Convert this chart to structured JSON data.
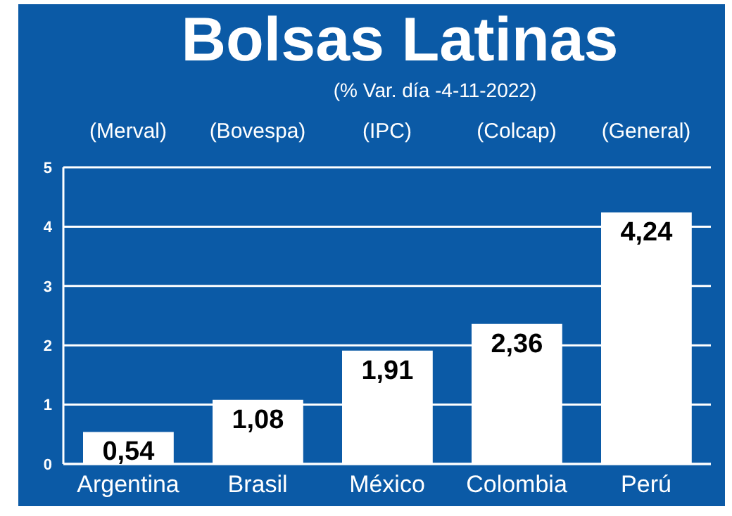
{
  "chart_data": {
    "type": "bar",
    "title": "Bolsas Latinas",
    "subtitle": "(% Var. día -4-11-2022)",
    "annotations": [
      "(Merval)",
      "(Bovespa)",
      "(IPC)",
      "(Colcap)",
      "(General)"
    ],
    "categories": [
      "Argentina",
      "Brasil",
      "México",
      "Colombia",
      "Perú"
    ],
    "values": [
      0.54,
      1.08,
      1.91,
      2.36,
      4.24
    ],
    "color": "#ffffff",
    "value_labels": [
      "0,54",
      "1,08",
      "1,91",
      "2,36",
      "4,24"
    ],
    "ylim": [
      0,
      5
    ],
    "yticks": [
      0,
      1,
      2,
      3,
      4,
      5
    ],
    "grid": "y"
  }
}
